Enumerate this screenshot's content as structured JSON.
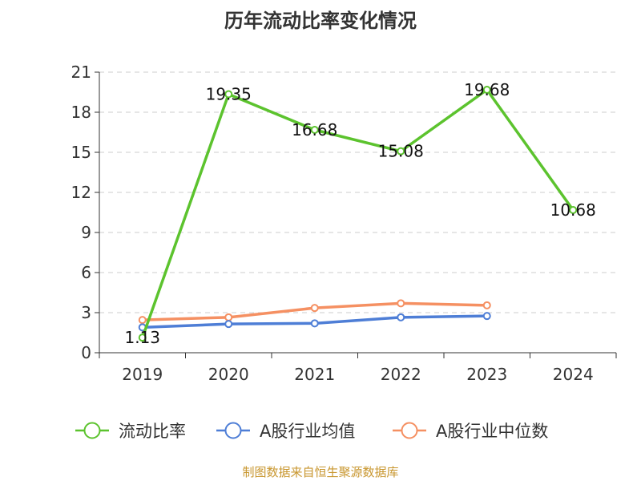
{
  "chart_data": {
    "type": "line",
    "title": "历年流动比率变化情况",
    "xlabel": "",
    "ylabel": "",
    "categories": [
      "2019",
      "2020",
      "2021",
      "2022",
      "2023",
      "2024"
    ],
    "ylim": [
      0,
      21
    ],
    "yticks": [
      0,
      3,
      6,
      9,
      12,
      15,
      18,
      21
    ],
    "grid": true,
    "legend_position": "bottom",
    "series": [
      {
        "name": "流动比率",
        "color": "#5cc32e",
        "show_labels": true,
        "values": [
          1.13,
          19.35,
          16.68,
          15.08,
          19.68,
          10.68
        ]
      },
      {
        "name": "A股行业均值",
        "color": "#4e7ed6",
        "show_labels": false,
        "values": [
          1.9,
          2.15,
          2.2,
          2.65,
          2.75,
          null
        ]
      },
      {
        "name": "A股行业中位数",
        "color": "#f59062",
        "show_labels": false,
        "values": [
          2.45,
          2.65,
          3.35,
          3.7,
          3.55,
          null
        ]
      }
    ]
  },
  "source": "制图数据来自恒生聚源数据库"
}
